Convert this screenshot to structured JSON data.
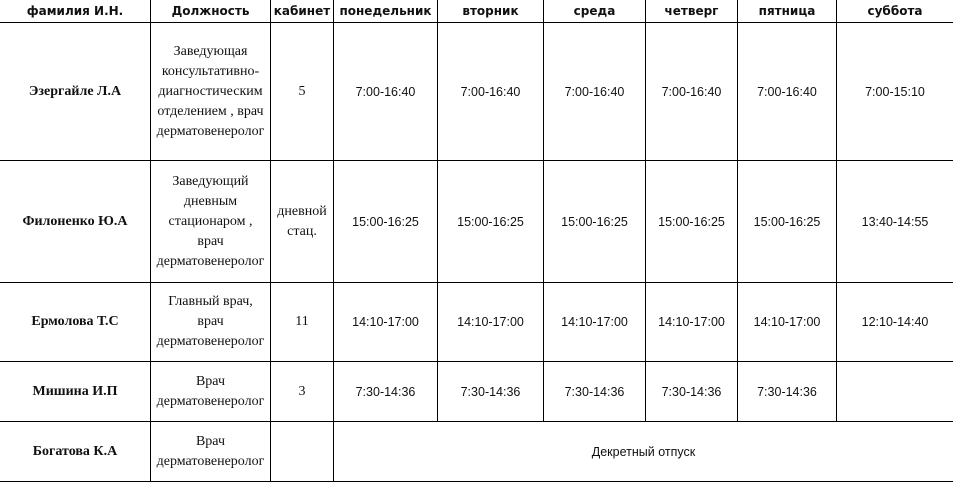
{
  "headers": [
    "фамилия И.Н.",
    "Должность",
    "кабинет",
    "понедельник",
    "вторник",
    "среда",
    "четверг",
    "пятница",
    "суббота"
  ],
  "rows": [
    {
      "name": "Эзергайле Л.А",
      "position": [
        "Заведующая",
        "консультативно-",
        "диагностическим",
        "отделением , врач",
        "дерматовенеролог"
      ],
      "room": "5",
      "schedule": [
        "7:00-16:40",
        "7:00-16:40",
        "7:00-16:40",
        "7:00-16:40",
        "7:00-16:40",
        "7:00-15:10"
      ]
    },
    {
      "name": "Филоненко Ю.А",
      "position": [
        "Заведующий",
        "дневным",
        "стационаром ,",
        "врач",
        "дерматовенеролог"
      ],
      "room": "дневной стац.",
      "schedule": [
        "15:00-16:25",
        "15:00-16:25",
        "15:00-16:25",
        "15:00-16:25",
        "15:00-16:25",
        "13:40-14:55"
      ]
    },
    {
      "name": "Ермолова Т.С",
      "position": [
        "Главный врач,",
        "врач",
        "дерматовенеролог"
      ],
      "room": "11",
      "schedule": [
        "14:10-17:00",
        "14:10-17:00",
        "14:10-17:00",
        "14:10-17:00",
        "14:10-17:00",
        "12:10-14:40"
      ]
    },
    {
      "name": "Мишина И.П",
      "position": [
        "Врач",
        "дерматовенеролог"
      ],
      "room": "3",
      "schedule": [
        "7:30-14:36",
        "7:30-14:36",
        "7:30-14:36",
        "7:30-14:36",
        "7:30-14:36",
        ""
      ]
    },
    {
      "name": "Богатова К.А",
      "position": [
        "Врач",
        "дерматовенеролог"
      ],
      "room": "",
      "schedule_note": "Декретный отпуск"
    }
  ]
}
